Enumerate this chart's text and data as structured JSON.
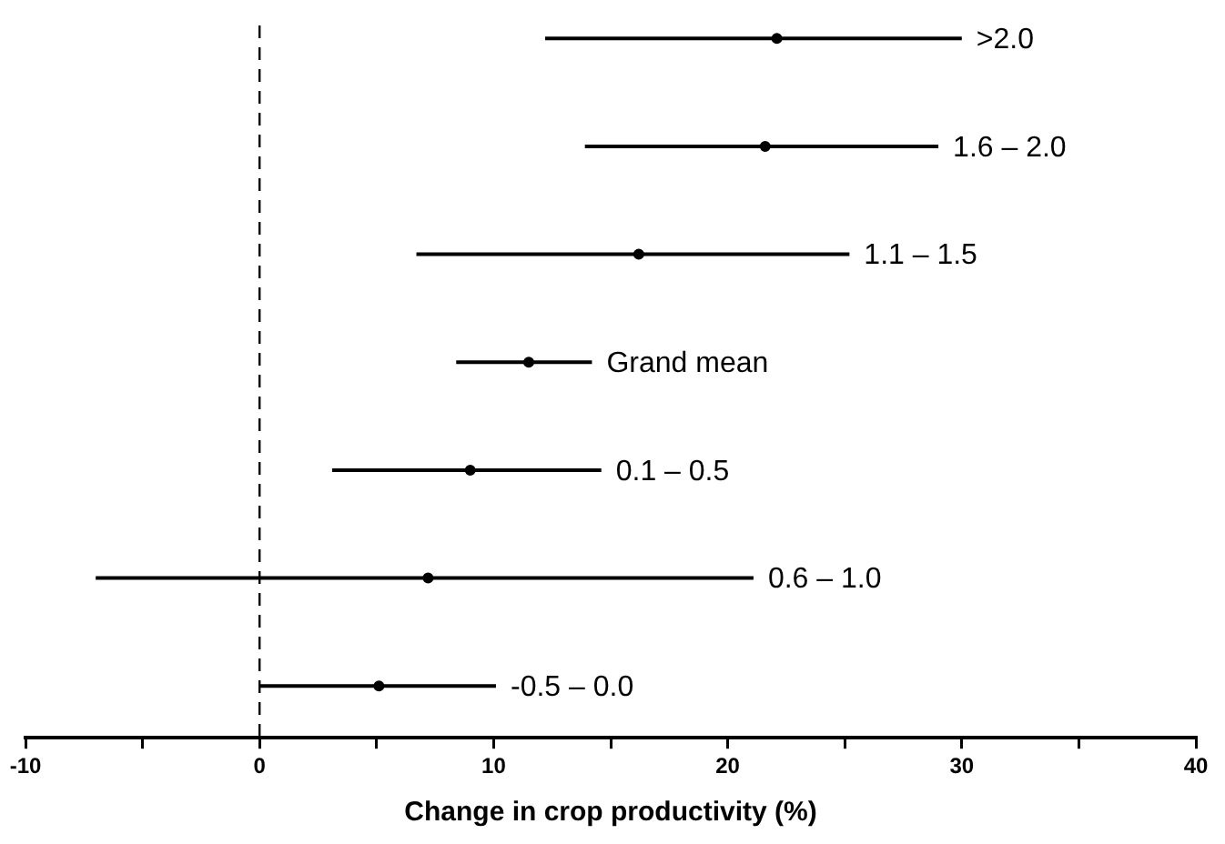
{
  "chart_data": {
    "type": "scatter",
    "orientation": "horizontal",
    "xlabel": "Change in crop productivity (%)",
    "categories": [
      ">2.0",
      "1.6 – 2.0",
      "1.1 – 1.5",
      "Grand mean",
      "0.1 – 0.5",
      "0.6 – 1.0",
      "-0.5 – 0.0"
    ],
    "values": [
      22.1,
      21.6,
      16.2,
      11.5,
      9.0,
      7.2,
      5.1
    ],
    "errors": [
      [
        12.2,
        30.0
      ],
      [
        13.9,
        29.0
      ],
      [
        6.7,
        25.2
      ],
      [
        8.4,
        14.2
      ],
      [
        3.1,
        14.6
      ],
      [
        -7.0,
        21.1
      ],
      [
        0.0,
        10.1
      ]
    ],
    "color": "#000000",
    "xlim": [
      -10,
      40
    ],
    "xticks": [
      -10,
      {
        "value": -5,
        "label": null
      },
      0,
      {
        "value": 5,
        "label": null
      },
      10,
      {
        "value": 15,
        "label": null
      },
      20,
      {
        "value": 25,
        "label": null
      },
      30,
      {
        "value": 35,
        "label": null
      },
      40
    ],
    "ref_lines": [
      {
        "axis": "x",
        "value": 0,
        "line_style": "dashed"
      }
    ],
    "tick_labels": "x",
    "grid": false,
    "legend": false
  }
}
